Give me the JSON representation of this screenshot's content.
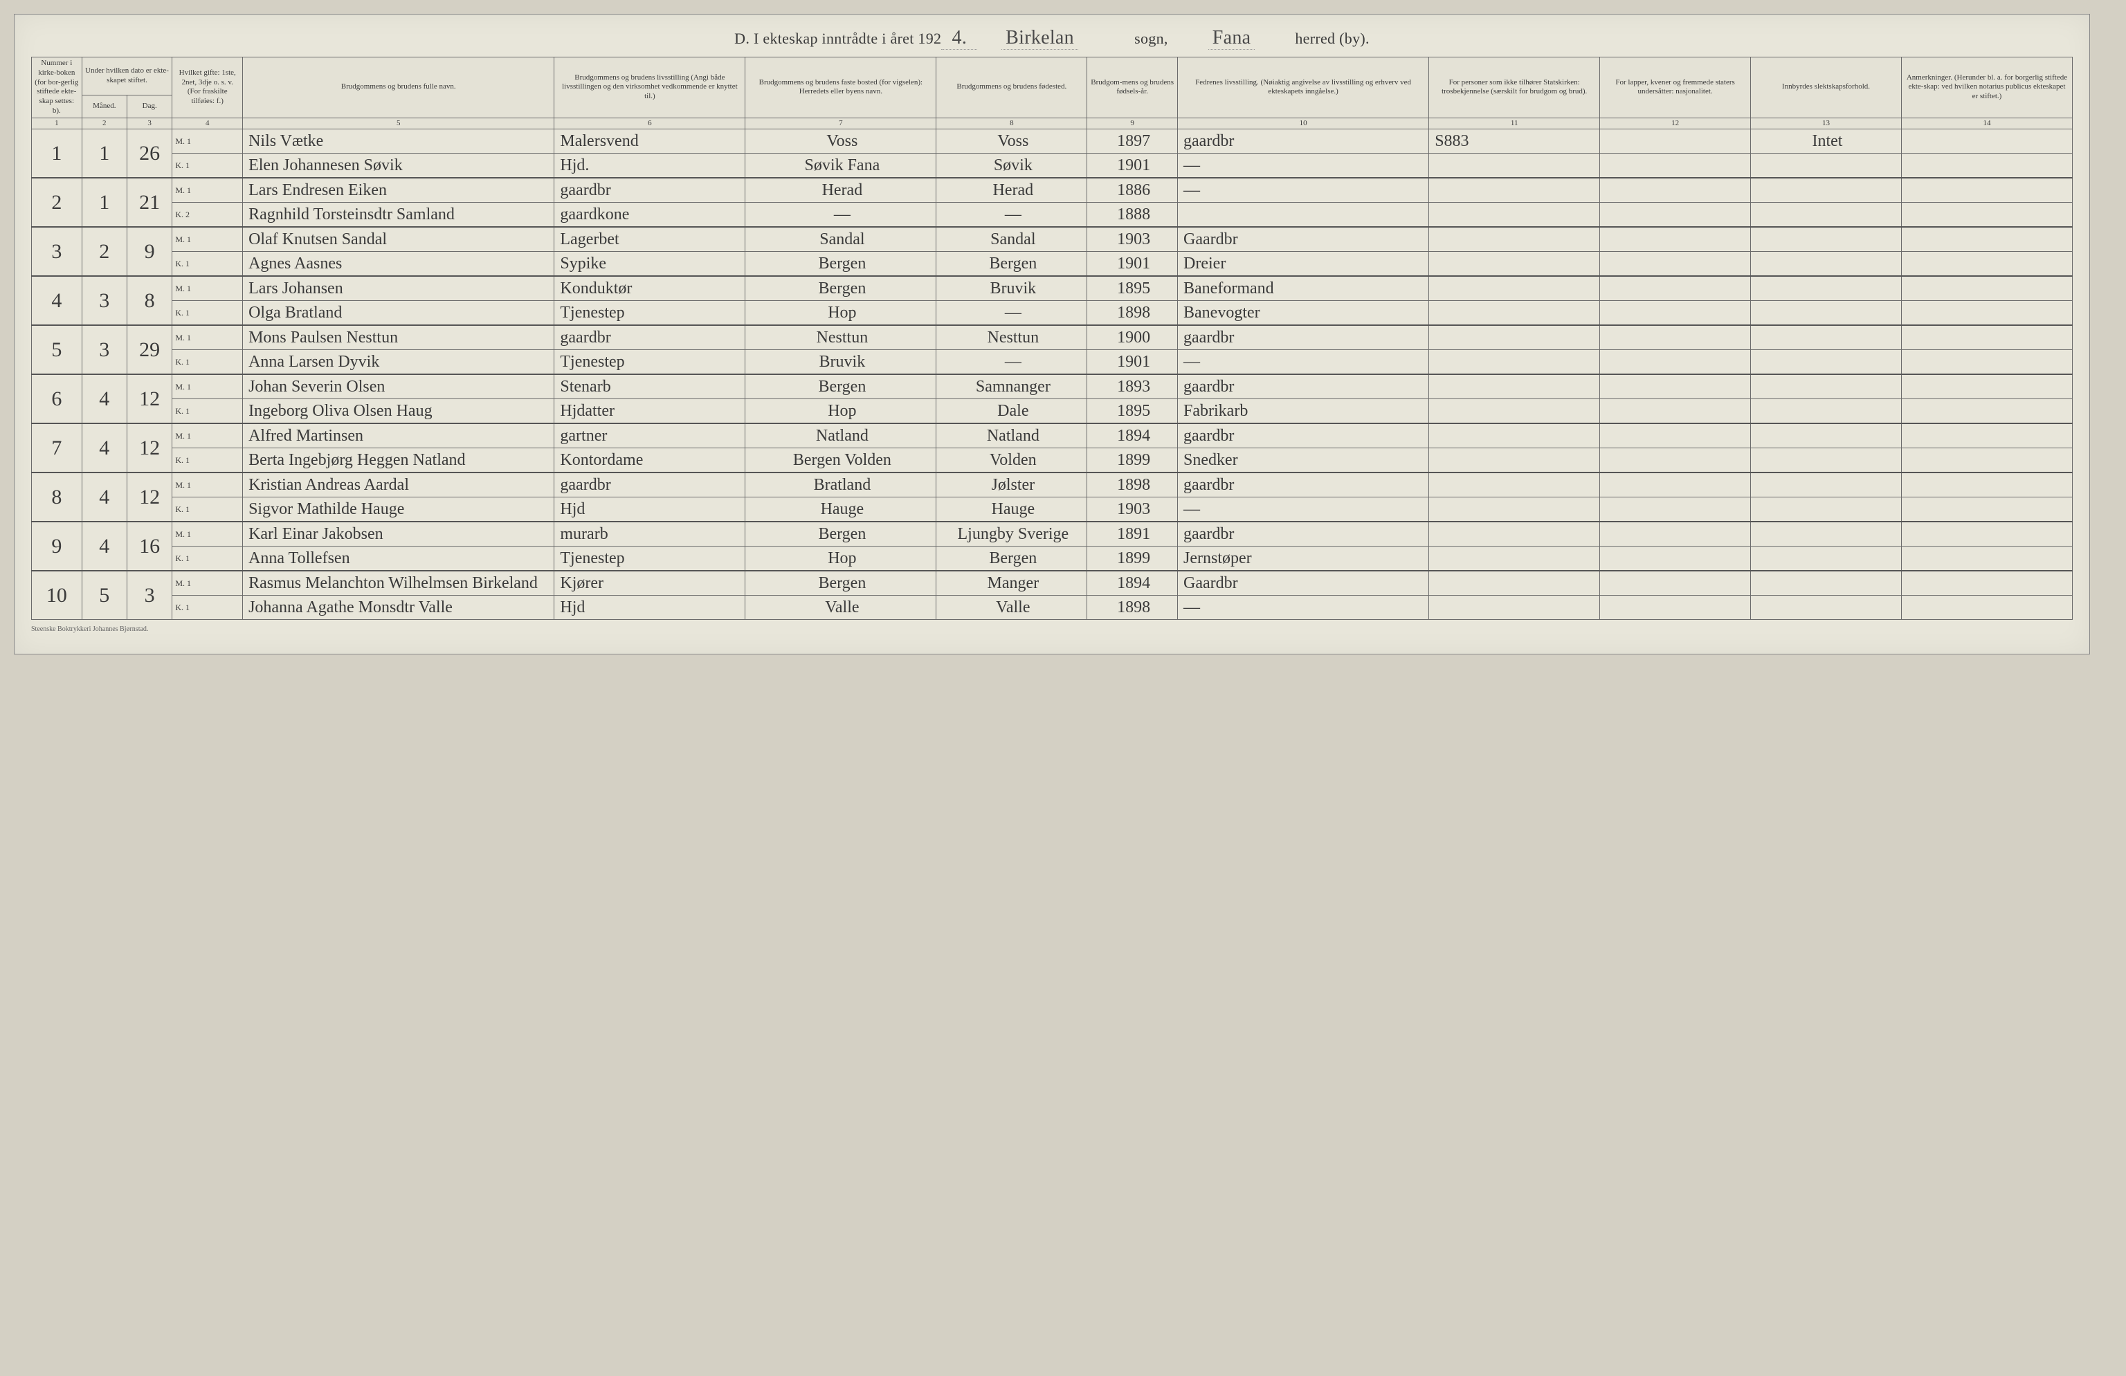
{
  "header": {
    "prefix": "D.  I ekteskap inntrådte i året 192",
    "year_suffix": "4.",
    "parish": "Birkelan",
    "label_sogn": "sogn,",
    "district": "Fana",
    "label_herred": "herred (by)."
  },
  "columns": [
    {
      "n": "1",
      "label": "Nummer i kirke-boken (for bor-gerlig stiftede ekte-skap settes: b)."
    },
    {
      "n": "2",
      "label": "Under hvilken dato er ekte-skapet stiftet.",
      "sub_a": "Måned.",
      "sub_b": "Dag."
    },
    {
      "n": "3",
      "label": ""
    },
    {
      "n": "4",
      "label": "Hvilket gifte: 1ste, 2net, 3dje o. s. v. (For fraskilte tilføies: f.)"
    },
    {
      "n": "5",
      "label": "Brudgommens og brudens fulle navn."
    },
    {
      "n": "6",
      "label": "Brudgommens og brudens livsstilling (Angi både livsstillingen og den virksomhet vedkommende er knyttet til.)"
    },
    {
      "n": "7",
      "label": "Brudgommens og brudens faste bosted (for vigselen): Herredets eller byens navn."
    },
    {
      "n": "8",
      "label": "Brudgommens og brudens fødested."
    },
    {
      "n": "9",
      "label": "Brudgom-mens og brudens fødsels-år."
    },
    {
      "n": "10",
      "label": "Fedrenes livsstilling. (Nøiaktig angivelse av livsstilling og erhverv ved ekteskapets inngåelse.)"
    },
    {
      "n": "11",
      "label": "For personer som ikke tilhører Statskirken: trosbekjennelse (særskilt for brudgom og brud)."
    },
    {
      "n": "12",
      "label": "For lapper, kvener og fremmede staters undersåtter: nasjonalitet."
    },
    {
      "n": "13",
      "label": "Innbyrdes slektskapsforhold."
    },
    {
      "n": "14",
      "label": "Anmerkninger. (Herunder bl. a. for borgerlig stiftede ekte-skap: ved hvilken notarius publicus ekteskapet er stiftet.)"
    }
  ],
  "entries": [
    {
      "no": "1",
      "month": "1",
      "day": "26",
      "groom": {
        "gifte": "M. 1",
        "name": "Nils Vætke",
        "occ": "Malersvend",
        "residence": "Voss",
        "birthplace": "Voss",
        "year": "1897",
        "father": "gaardbr",
        "c11": "S883",
        "c12": "",
        "c13": "Intet",
        "c14": ""
      },
      "bride": {
        "gifte": "K. 1",
        "name": "Elen Johannesen Søvik",
        "occ": "Hjd.",
        "residence": "Søvik Fana",
        "birthplace": "Søvik",
        "year": "1901",
        "father": "—",
        "c11": "",
        "c12": "",
        "c13": "",
        "c14": ""
      }
    },
    {
      "no": "2",
      "month": "1",
      "day": "21",
      "groom": {
        "gifte": "M. 1",
        "name": "Lars Endresen Eiken",
        "occ": "gaardbr",
        "residence": "Herad",
        "birthplace": "Herad",
        "year": "1886",
        "father": "—",
        "c11": "",
        "c12": "",
        "c13": "",
        "c14": ""
      },
      "bride": {
        "gifte": "K. 2",
        "name": "Ragnhild Torsteinsdtr Samland",
        "occ": "gaardkone",
        "residence": "—",
        "birthplace": "—",
        "year": "1888",
        "father": "",
        "c11": "",
        "c12": "",
        "c13": "",
        "c14": ""
      }
    },
    {
      "no": "3",
      "month": "2",
      "day": "9",
      "groom": {
        "gifte": "M. 1",
        "name": "Olaf Knutsen Sandal",
        "occ": "Lagerbet",
        "residence": "Sandal",
        "birthplace": "Sandal",
        "year": "1903",
        "father": "Gaardbr",
        "c11": "",
        "c12": "",
        "c13": "",
        "c14": ""
      },
      "bride": {
        "gifte": "K. 1",
        "name": "Agnes Aasnes",
        "occ": "Sypike",
        "residence": "Bergen",
        "birthplace": "Bergen",
        "year": "1901",
        "father": "Dreier",
        "c11": "",
        "c12": "",
        "c13": "",
        "c14": ""
      }
    },
    {
      "no": "4",
      "month": "3",
      "day": "8",
      "groom": {
        "gifte": "M. 1",
        "name": "Lars Johansen",
        "occ": "Konduktør",
        "residence": "Bergen",
        "birthplace": "Bruvik",
        "year": "1895",
        "father": "Baneformand",
        "c11": "",
        "c12": "",
        "c13": "",
        "c14": ""
      },
      "bride": {
        "gifte": "K. 1",
        "name": "Olga Bratland",
        "occ": "Tjenestep",
        "residence": "Hop",
        "birthplace": "—",
        "year": "1898",
        "father": "Banevogter",
        "c11": "",
        "c12": "",
        "c13": "",
        "c14": ""
      }
    },
    {
      "no": "5",
      "month": "3",
      "day": "29",
      "groom": {
        "gifte": "M. 1",
        "name": "Mons Paulsen Nesttun",
        "occ": "gaardbr",
        "residence": "Nesttun",
        "birthplace": "Nesttun",
        "year": "1900",
        "father": "gaardbr",
        "c11": "",
        "c12": "",
        "c13": "",
        "c14": ""
      },
      "bride": {
        "gifte": "K. 1",
        "name": "Anna Larsen Dyvik",
        "occ": "Tjenestep",
        "residence": "Bruvik",
        "birthplace": "—",
        "year": "1901",
        "father": "—",
        "c11": "",
        "c12": "",
        "c13": "",
        "c14": ""
      }
    },
    {
      "no": "6",
      "month": "4",
      "day": "12",
      "groom": {
        "gifte": "M. 1",
        "name": "Johan Severin Olsen",
        "occ": "Stenarb",
        "residence": "Bergen",
        "birthplace": "Samnanger",
        "year": "1893",
        "father": "gaardbr",
        "c11": "",
        "c12": "",
        "c13": "",
        "c14": ""
      },
      "bride": {
        "gifte": "K. 1",
        "name": "Ingeborg Oliva Olsen Haug",
        "occ": "Hjdatter",
        "residence": "Hop",
        "birthplace": "Dale",
        "year": "1895",
        "father": "Fabrikarb",
        "c11": "",
        "c12": "",
        "c13": "",
        "c14": ""
      }
    },
    {
      "no": "7",
      "month": "4",
      "day": "12",
      "groom": {
        "gifte": "M. 1",
        "name": "Alfred Martinsen",
        "occ": "gartner",
        "residence": "Natland",
        "birthplace": "Natland",
        "year": "1894",
        "father": "gaardbr",
        "c11": "",
        "c12": "",
        "c13": "",
        "c14": ""
      },
      "bride": {
        "gifte": "K. 1",
        "name": "Berta Ingebjørg Heggen Natland",
        "occ": "Kontordame",
        "residence": "Bergen Volden",
        "birthplace": "Volden",
        "year": "1899",
        "father": "Snedker",
        "c11": "",
        "c12": "",
        "c13": "",
        "c14": ""
      }
    },
    {
      "no": "8",
      "month": "4",
      "day": "12",
      "groom": {
        "gifte": "M. 1",
        "name": "Kristian Andreas Aardal",
        "occ": "gaardbr",
        "residence": "Bratland",
        "birthplace": "Jølster",
        "year": "1898",
        "father": "gaardbr",
        "c11": "",
        "c12": "",
        "c13": "",
        "c14": ""
      },
      "bride": {
        "gifte": "K. 1",
        "name": "Sigvor Mathilde Hauge",
        "occ": "Hjd",
        "residence": "Hauge",
        "birthplace": "Hauge",
        "year": "1903",
        "father": "—",
        "c11": "",
        "c12": "",
        "c13": "",
        "c14": ""
      }
    },
    {
      "no": "9",
      "month": "4",
      "day": "16",
      "groom": {
        "gifte": "M. 1",
        "name": "Karl Einar Jakobsen",
        "occ": "murarb",
        "residence": "Bergen",
        "birthplace": "Ljungby Sverige",
        "year": "1891",
        "father": "gaardbr",
        "c11": "",
        "c12": "",
        "c13": "",
        "c14": ""
      },
      "bride": {
        "gifte": "K. 1",
        "name": "Anna Tollefsen",
        "occ": "Tjenestep",
        "residence": "Hop",
        "birthplace": "Bergen",
        "year": "1899",
        "father": "Jernstøper",
        "c11": "",
        "c12": "",
        "c13": "",
        "c14": ""
      }
    },
    {
      "no": "10",
      "month": "5",
      "day": "3",
      "groom": {
        "gifte": "M. 1",
        "name": "Rasmus Melanchton Wilhelmsen Birkeland",
        "occ": "Kjører",
        "residence": "Bergen",
        "birthplace": "Manger",
        "year": "1894",
        "father": "Gaardbr",
        "c11": "",
        "c12": "",
        "c13": "",
        "c14": ""
      },
      "bride": {
        "gifte": "K. 1",
        "name": "Johanna Agathe Monsdtr Valle",
        "occ": "Hjd",
        "residence": "Valle",
        "birthplace": "Valle",
        "year": "1898",
        "father": "—",
        "c11": "",
        "c12": "",
        "c13": "",
        "c14": ""
      }
    }
  ],
  "footer": "Steenske Boktrykkeri Johannes Bjørnstad."
}
